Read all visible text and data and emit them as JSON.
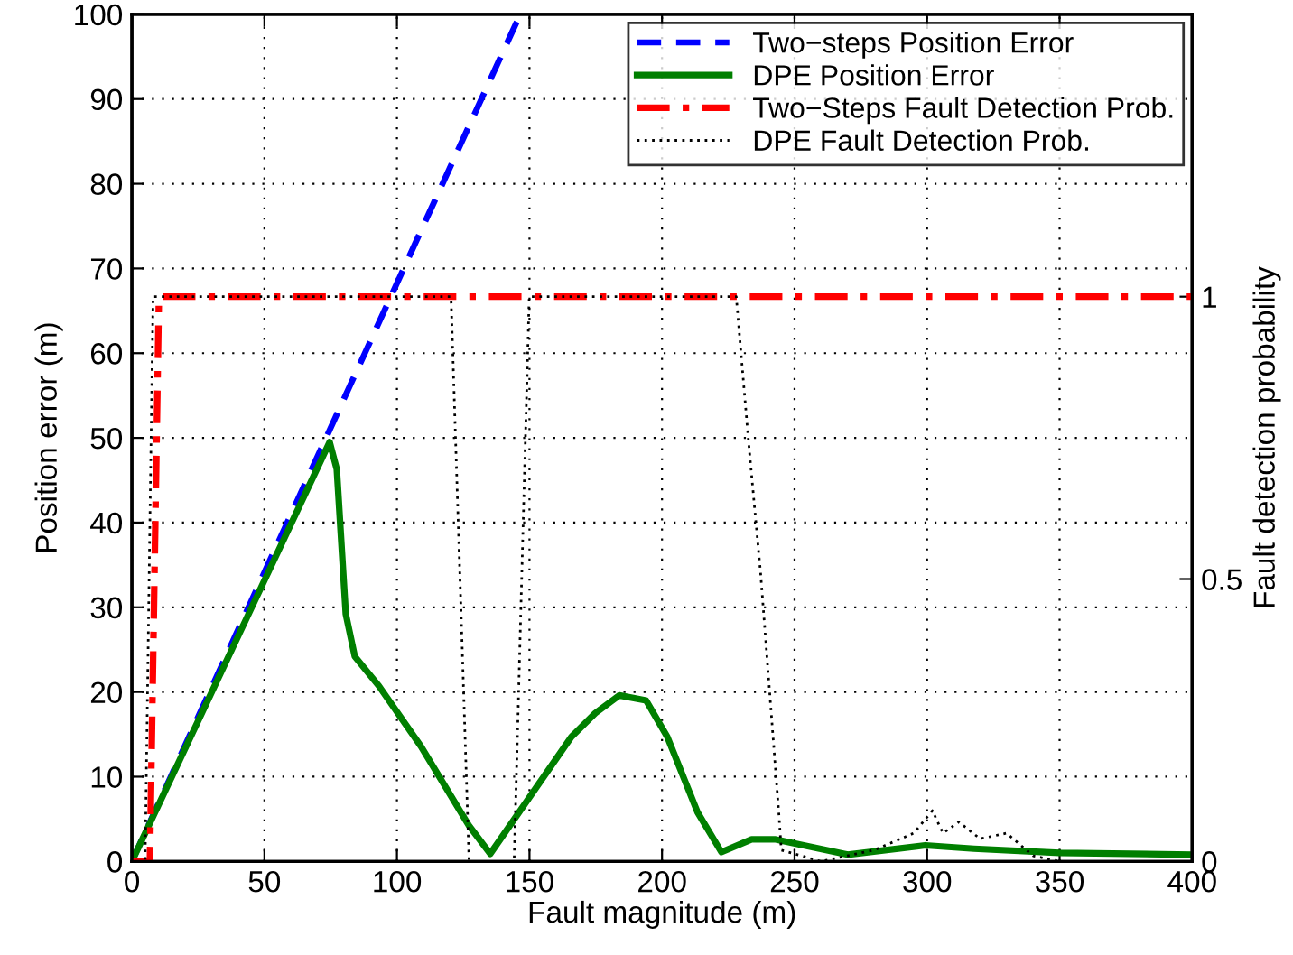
{
  "chart_data": {
    "type": "line",
    "xlabel": "Fault magnitude (m)",
    "ylabel": "Position error (m)",
    "y2label": "Fault detection probability",
    "xlim": [
      0,
      400
    ],
    "xticks": [
      0,
      50,
      100,
      150,
      200,
      250,
      300,
      350,
      400
    ],
    "ylim": [
      0,
      100
    ],
    "yticks": [
      0,
      10,
      20,
      30,
      40,
      50,
      60,
      70,
      80,
      90,
      100
    ],
    "y2lim": [
      0,
      1.5
    ],
    "y2ticks": [
      0,
      0.5,
      1
    ],
    "grid": true,
    "legend": "top right",
    "series": [
      {
        "name": "Two−steps Position Error",
        "color": "#0000ff",
        "line_style": "dashed",
        "x": [
          0,
          146.5
        ],
        "values": [
          0,
          100
        ]
      },
      {
        "name": "DPE Position Error",
        "color": "#007f00",
        "line_style": "solid",
        "x": [
          0,
          74.6,
          77.3,
          80.7,
          84.1,
          93.2,
          109,
          127,
          135.2,
          165.8,
          174.8,
          183.9,
          194,
          202,
          213.4,
          222.4,
          233.8,
          242.9,
          270,
          299.3,
          317.7,
          350,
          400
        ],
        "values": [
          0,
          49.5,
          46.3,
          29.2,
          24.2,
          20.7,
          13.6,
          4.3,
          0.9,
          14.7,
          17.5,
          19.6,
          19,
          14.7,
          5.8,
          1.1,
          2.6,
          2.6,
          0.8,
          1.9,
          1.5,
          1.0,
          0.8
        ]
      },
      {
        "name": "Two−Steps Fault Detection Prob.",
        "color": "#ff0000",
        "line_style": "dashdot",
        "axis": "y2",
        "x": [
          0,
          6.8,
          10.2,
          400
        ],
        "values": [
          0,
          0,
          1,
          1
        ]
      },
      {
        "name": "DPE Fault Detection Prob.",
        "color": "#000000",
        "line_style": "dotted",
        "axis": "y2",
        "x": [
          0,
          5,
          8,
          120.4,
          127.2,
          144.2,
          149.9,
          228,
          232.7,
          237.2,
          240.6,
          244,
          245,
          260,
          280,
          295,
          302,
          306,
          312,
          320,
          330,
          340,
          350,
          400
        ],
        "values": [
          0,
          0,
          1,
          1,
          0,
          0,
          1,
          1,
          0.74,
          0.51,
          0.3,
          0.09,
          0.02,
          0,
          0.02,
          0.05,
          0.09,
          0.05,
          0.07,
          0.04,
          0.05,
          0.01,
          0,
          0
        ]
      }
    ]
  }
}
